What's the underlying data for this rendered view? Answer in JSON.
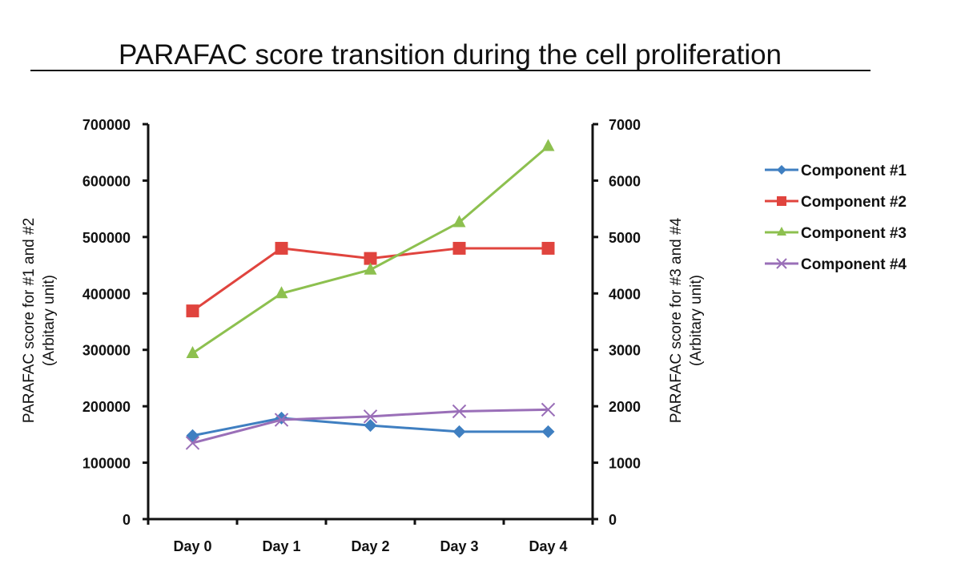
{
  "chart_data": {
    "type": "line",
    "title": "PARAFAC score transition during the cell proliferation",
    "categories": [
      "Day 0",
      "Day 1",
      "Day 2",
      "Day 3",
      "Day 4"
    ],
    "y_left": {
      "label_line1": "PARAFAC score for #1 and #2",
      "label_line2": "(Arbitary unit)",
      "range": [
        0,
        700000
      ],
      "ticks": [
        "0",
        "100000",
        "200000",
        "300000",
        "400000",
        "500000",
        "600000",
        "700000"
      ]
    },
    "y_right": {
      "label_line1": "PARAFAC score for #3 and #4",
      "label_line2": "(Arbitary unit)",
      "range": [
        0,
        7000
      ],
      "ticks": [
        "0",
        "1000",
        "2000",
        "3000",
        "4000",
        "5000",
        "6000",
        "7000"
      ]
    },
    "grid": false,
    "legend_position": "right",
    "series": [
      {
        "name": "Component #1",
        "axis": "left",
        "color": "#3f7fc1",
        "marker": "diamond",
        "values": [
          148000,
          179000,
          166000,
          155000,
          155000
        ]
      },
      {
        "name": "Component #2",
        "axis": "left",
        "color": "#e0443e",
        "marker": "square",
        "values": [
          369000,
          480000,
          462000,
          480000,
          480000
        ]
      },
      {
        "name": "Component #3",
        "axis": "right",
        "color": "#8dc04f",
        "marker": "triangle",
        "values": [
          2940,
          4000,
          4420,
          5260,
          6610
        ]
      },
      {
        "name": "Component #4",
        "axis": "right",
        "color": "#9a6fb8",
        "marker": "x",
        "values": [
          1350,
          1760,
          1820,
          1910,
          1940
        ]
      }
    ]
  }
}
